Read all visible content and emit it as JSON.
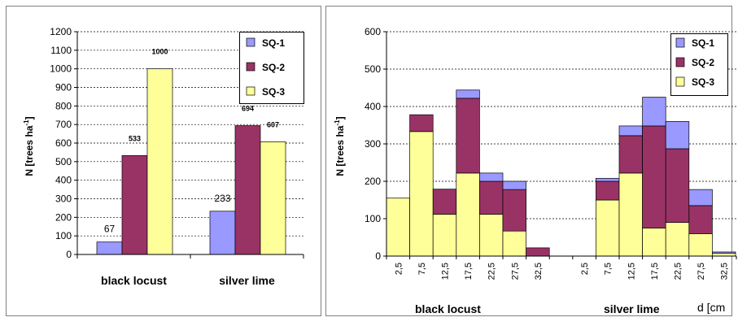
{
  "colors": {
    "SQ-1": "#9999ff",
    "SQ-2": "#993366",
    "SQ-3": "#ffff99",
    "grid": "#000000",
    "frame": "#808080"
  },
  "chart_data": [
    {
      "type": "bar",
      "ylabel": "N [trees ha",
      "ylabel_sup": "-1",
      "ylabel_end": "]",
      "ylim": [
        0,
        1200
      ],
      "yticks": [
        0,
        100,
        200,
        300,
        400,
        500,
        600,
        700,
        800,
        900,
        1000,
        1100,
        1200
      ],
      "grid": true,
      "legend_position": "top-right",
      "categories": [
        "black locust",
        "silver lime"
      ],
      "series": [
        {
          "name": "SQ-1",
          "values": [
            67,
            233
          ],
          "labels": [
            "67",
            "233"
          ]
        },
        {
          "name": "SQ-2",
          "values": [
            533,
            694
          ],
          "labels": [
            "533",
            "694"
          ]
        },
        {
          "name": "SQ-3",
          "values": [
            1000,
            607
          ],
          "labels": [
            "1000",
            "607"
          ]
        }
      ]
    },
    {
      "type": "bar",
      "stacked": true,
      "ylabel": "N [trees ha",
      "ylabel_sup": "-1",
      "ylabel_end": "]",
      "xlabel": "d [cm",
      "ylim": [
        0,
        600
      ],
      "yticks": [
        0,
        100,
        200,
        300,
        400,
        500,
        600
      ],
      "grid": true,
      "legend_position": "top-right",
      "group_labels": [
        "black locust",
        "silver lime"
      ],
      "x": [
        "2,5",
        "7,5",
        "12,5",
        "17,5",
        "22,5",
        "27,5",
        "32,5",
        "",
        "2,5",
        "7,5",
        "12,5",
        "17,5",
        "22,5",
        "27,5",
        "32,5"
      ],
      "series": [
        {
          "name": "SQ-3",
          "values": [
            155,
            333,
            112,
            222,
            112,
            67,
            0,
            0,
            0,
            150,
            222,
            75,
            90,
            60,
            8
          ]
        },
        {
          "name": "SQ-2",
          "values": [
            0,
            45,
            67,
            200,
            88,
            111,
            22,
            0,
            0,
            50,
            100,
            273,
            197,
            75,
            0
          ]
        },
        {
          "name": "SQ-1",
          "values": [
            0,
            0,
            0,
            22,
            22,
            22,
            0,
            0,
            0,
            8,
            26,
            77,
            73,
            43,
            3
          ]
        }
      ]
    }
  ]
}
